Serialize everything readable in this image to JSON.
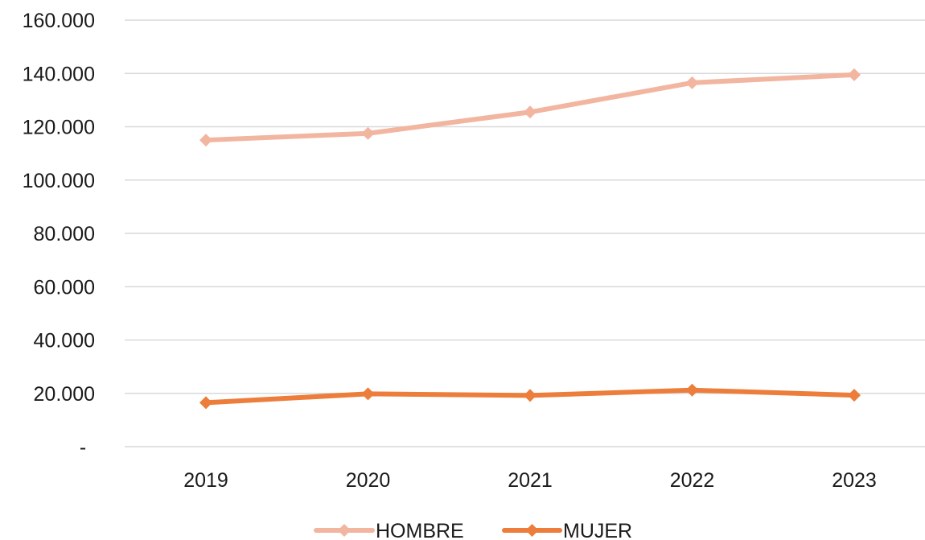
{
  "chart_data": {
    "type": "line",
    "title": "",
    "xlabel": "",
    "ylabel": "",
    "categories": [
      "2019",
      "2020",
      "2021",
      "2022",
      "2023"
    ],
    "series": [
      {
        "name": "HOMBRE",
        "color": "#f2b5a0",
        "marker": "diamond",
        "values": [
          115000,
          117500,
          125500,
          136500,
          139500
        ]
      },
      {
        "name": "MUJER",
        "color": "#ec7d3a",
        "marker": "diamond",
        "values": [
          16500,
          19800,
          19200,
          21200,
          19300
        ]
      }
    ],
    "ylim": [
      0,
      160000
    ],
    "yticks": [
      {
        "value": 0,
        "label": "-"
      },
      {
        "value": 20000,
        "label": "20.000"
      },
      {
        "value": 40000,
        "label": "40.000"
      },
      {
        "value": 60000,
        "label": "60.000"
      },
      {
        "value": 80000,
        "label": "80.000"
      },
      {
        "value": 100000,
        "label": "100.000"
      },
      {
        "value": 120000,
        "label": "120.000"
      },
      {
        "value": 140000,
        "label": "140.000"
      },
      {
        "value": 160000,
        "label": "160.000"
      }
    ],
    "grid": true,
    "legend": "bottom"
  }
}
